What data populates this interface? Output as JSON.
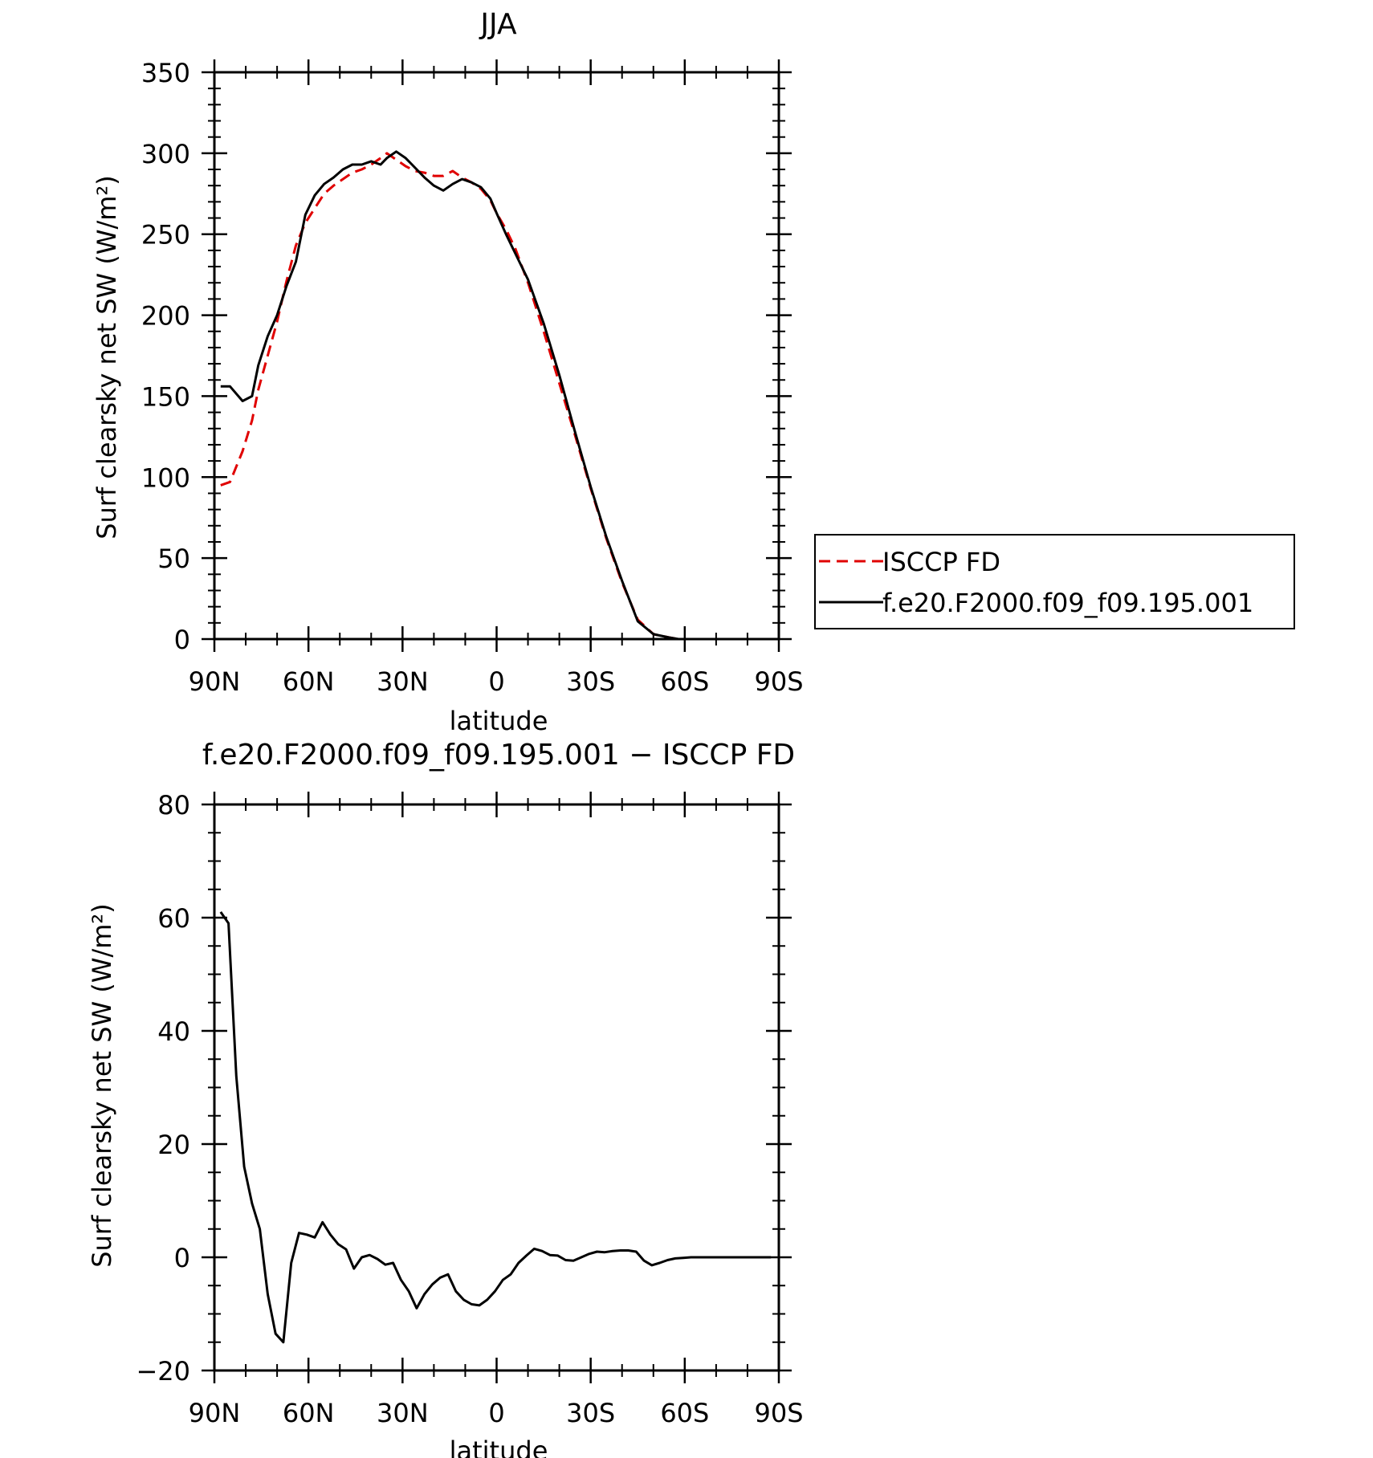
{
  "chart_data": [
    {
      "type": "line",
      "title": "JJA",
      "xlabel": "latitude",
      "ylabel": "Surf clearsky net SW (W/m²)",
      "ylim": [
        0,
        350
      ],
      "xlim": [
        90,
        -90
      ],
      "xaxis_note": "latitude in degrees, positive = North, negative = South",
      "xticks": [
        90,
        60,
        30,
        0,
        -30,
        -60,
        -90
      ],
      "xtick_labels": [
        "90N",
        "60N",
        "30N",
        "0",
        "30S",
        "60S",
        "90S"
      ],
      "yticks": [
        0,
        50,
        100,
        150,
        200,
        250,
        300,
        350
      ],
      "ytick_labels": [
        "0",
        "50",
        "100",
        "150",
        "200",
        "250",
        "300",
        "350"
      ],
      "grid": false,
      "legend_position": "right",
      "series": [
        {
          "name": "ISCCP FD",
          "color": "#e00000",
          "dash": "dashed",
          "x": [
            88,
            85,
            81,
            78,
            76,
            73,
            70,
            67,
            64,
            61,
            58,
            55,
            52,
            49,
            46,
            43,
            40,
            37,
            35,
            32,
            29,
            26,
            23,
            20,
            17,
            14,
            11,
            8,
            5,
            2,
            0,
            -3,
            -6,
            -10,
            -15,
            -20,
            -25,
            -30,
            -35,
            -40,
            -45,
            -50,
            -55,
            -58,
            -61,
            -63,
            -66,
            -69,
            -72,
            -75,
            -78,
            -82,
            -86,
            -88
          ],
          "y": [
            95,
            97,
            116,
            135,
            154,
            175,
            196,
            221,
            243,
            257,
            266,
            275,
            280,
            284,
            288,
            290,
            293,
            297,
            300,
            296,
            292,
            289,
            288,
            286,
            286,
            289,
            285,
            282,
            278,
            271,
            263,
            253,
            241,
            220,
            190,
            158,
            126,
            93,
            62,
            35,
            12,
            3,
            1,
            0,
            0,
            0,
            0,
            0,
            0,
            0,
            0,
            0,
            0,
            0
          ]
        },
        {
          "name": "f.e20.F2000.f09_f09.195.001",
          "color": "#000000",
          "dash": "solid",
          "x": [
            88,
            85,
            81,
            78,
            76,
            73,
            70,
            67,
            64,
            61,
            58,
            55,
            52,
            49,
            46,
            43,
            40,
            37,
            35,
            32,
            29,
            26,
            23,
            20,
            17,
            14,
            11,
            8,
            5,
            2,
            0,
            -3,
            -6,
            -10,
            -15,
            -20,
            -25,
            -30,
            -35,
            -40,
            -45,
            -50,
            -55,
            -58,
            -61,
            -63,
            -66,
            -69,
            -72,
            -75,
            -78,
            -82,
            -86,
            -88
          ],
          "y": [
            156,
            156,
            147,
            150,
            169,
            187,
            200,
            218,
            233,
            262,
            274,
            281,
            285,
            290,
            293,
            293,
            295,
            293,
            297,
            301,
            297,
            291,
            285,
            280,
            277,
            281,
            284,
            282,
            279,
            272,
            263,
            250,
            238,
            222,
            195,
            163,
            128,
            94,
            63,
            36,
            11,
            3,
            1,
            0,
            0,
            0,
            0,
            0,
            0,
            0,
            0,
            0,
            0,
            0
          ]
        }
      ]
    },
    {
      "type": "line",
      "title": "f.e20.F2000.f09_f09.195.001 − ISCCP FD",
      "xlabel": "latitude",
      "ylabel": "Surf clearsky net SW (W/m²)",
      "ylim": [
        -20,
        80
      ],
      "xlim": [
        90,
        -90
      ],
      "xticks": [
        90,
        60,
        30,
        0,
        -30,
        -60,
        -90
      ],
      "xtick_labels": [
        "90N",
        "60N",
        "30N",
        "0",
        "30S",
        "60S",
        "90S"
      ],
      "yticks": [
        -20,
        0,
        20,
        40,
        60,
        80
      ],
      "ytick_labels": [
        "−20",
        "0",
        "20",
        "40",
        "60",
        "80"
      ],
      "grid": false,
      "series": [
        {
          "color": "#000000",
          "dash": "solid",
          "x": [
            88,
            85.5,
            83,
            80.5,
            78,
            75.5,
            73,
            70.5,
            68,
            65.5,
            63,
            60.5,
            58,
            55.5,
            53,
            50.5,
            48,
            45.5,
            43,
            40.5,
            38,
            35.5,
            33,
            30.5,
            28,
            25.5,
            23,
            20.5,
            18,
            15.5,
            13,
            10.5,
            8,
            5.5,
            3,
            0.5,
            -2,
            -4.5,
            -7,
            -9.5,
            -12,
            -14.5,
            -17,
            -19.5,
            -22,
            -24.5,
            -27,
            -29.5,
            -32,
            -34.5,
            -37,
            -39.5,
            -42,
            -44.5,
            -47,
            -49.5,
            -52,
            -54.5,
            -57,
            -59.5,
            -62,
            -64.5,
            -67,
            -69.5,
            -72,
            -74.5,
            -77,
            -79.5,
            -82,
            -84.5,
            -87.5
          ],
          "y": [
            61,
            59,
            32,
            16,
            9.5,
            5,
            -6.5,
            -13.5,
            -15,
            -1,
            4.3,
            4,
            3.5,
            6.2,
            4,
            2.3,
            1.4,
            -2,
            0,
            0.4,
            -0.3,
            -1.3,
            -1,
            -4,
            -6,
            -9,
            -6.5,
            -4.8,
            -3.6,
            -3,
            -6,
            -7.5,
            -8.3,
            -8.5,
            -7.5,
            -6,
            -4,
            -3,
            -1,
            0.3,
            1.5,
            1.1,
            0.4,
            0.3,
            -0.5,
            -0.6,
            0,
            0.6,
            1,
            0.9,
            1.1,
            1.2,
            1.2,
            1,
            -0.6,
            -1.4,
            -1,
            -0.5,
            -0.2,
            -0.1,
            0,
            0,
            0,
            0,
            0,
            0,
            0,
            0,
            0,
            0,
            0
          ]
        }
      ]
    }
  ]
}
